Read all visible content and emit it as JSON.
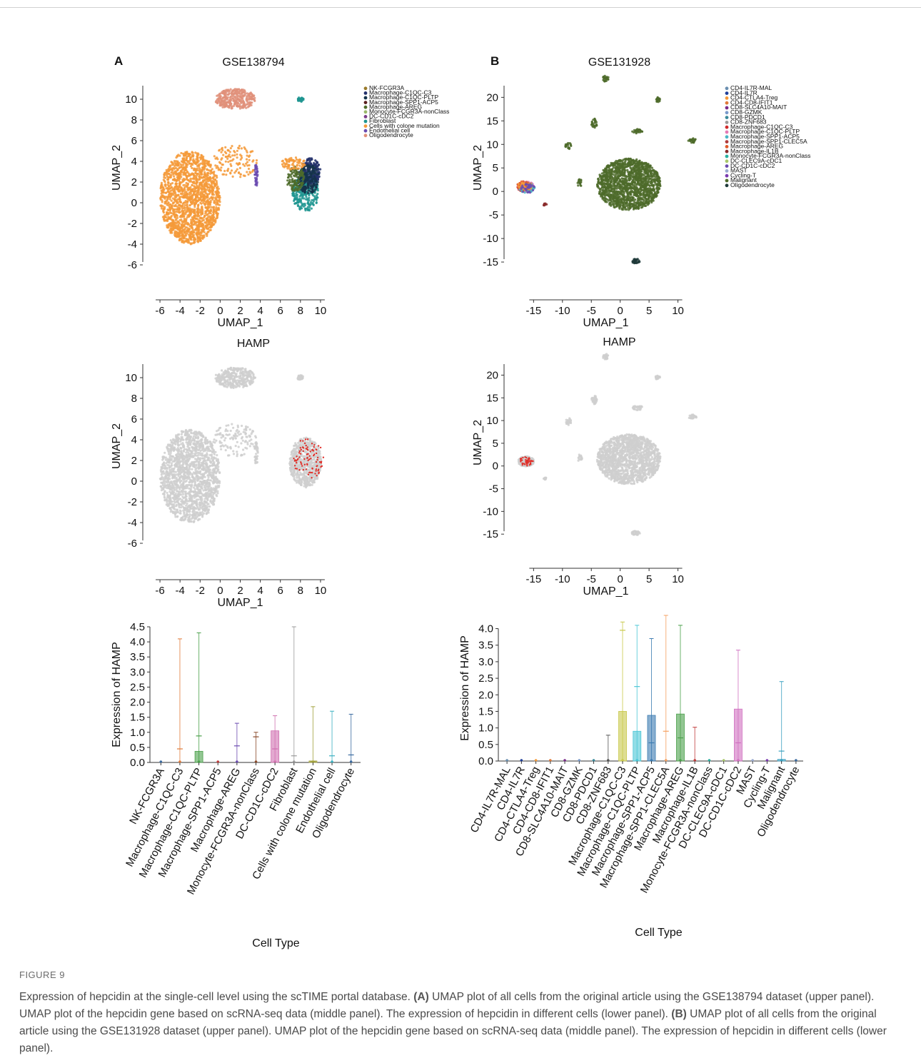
{
  "figure": {
    "panel_A_letter": "A",
    "panel_B_letter": "B",
    "hamp_title": "HAMP",
    "umap_x_label": "UMAP_1",
    "umap_y_label": "UMAP_2",
    "bar_y_label": "Expression of HAMP",
    "bar_x_label": "Cell Type"
  },
  "caption": {
    "label": "FIGURE 9",
    "parts": [
      {
        "t": "Expression of hepcidin at the single-cell level using the scTIME portal database. ",
        "b": false
      },
      {
        "t": "(A)",
        "b": true
      },
      {
        "t": " UMAP plot of all cells from the original article using the GSE138794 dataset (upper panel). UMAP plot of the hepcidin gene based on scRNA-seq data (middle panel). The expression of hepcidin in different cells (lower panel). ",
        "b": false
      },
      {
        "t": "(B)",
        "b": true
      },
      {
        "t": " UMAP plot of all cells from the original article using the GSE131928 dataset (upper panel). UMAP plot of the hepcidin gene based on scRNA-seq data (middle panel). The expression of hepcidin in different cells (lower panel).",
        "b": false
      }
    ]
  },
  "chart_data": [
    {
      "id": "A-umap",
      "type": "scatter",
      "title": "GSE138794",
      "xlabel": "UMAP_1",
      "ylabel": "UMAP_2",
      "xticks": [
        -6,
        -4,
        -2,
        0,
        2,
        4,
        6,
        8,
        10
      ],
      "yticks": [
        -6,
        -4,
        -2,
        0,
        2,
        4,
        6,
        8,
        10
      ],
      "xlim": [
        -7,
        11.5
      ],
      "ylim": [
        -8,
        12
      ],
      "legend": "right",
      "series": [
        {
          "name": "NK-FCGR3A",
          "color": "#9a7a2a"
        },
        {
          "name": "Macrophage-C1QC-C3",
          "color": "#23306b"
        },
        {
          "name": "Macrophage-C1QC-PLTP",
          "color": "#14324a"
        },
        {
          "name": "Macrophage-SPP1-ACP5",
          "color": "#5a1f1f"
        },
        {
          "name": "Macrophage-AREG",
          "color": "#4e6b2a"
        },
        {
          "name": "Monocyte-FCGR3A-nonClass",
          "color": "#9ab86a"
        },
        {
          "name": "DC-CD1C-cDC2",
          "color": "#7a3d8a"
        },
        {
          "name": "Fibroblast",
          "color": "#1f9590"
        },
        {
          "name": "Cells with colone mutation",
          "color": "#f59a3a"
        },
        {
          "name": "Endothelial cell",
          "color": "#6a4ab0"
        },
        {
          "name": "Oligodendrocyte",
          "color": "#e0907a"
        }
      ],
      "clusters": [
        {
          "series": "Cells with colone mutation",
          "cx": -3.0,
          "cy": 0.5,
          "rx": 3.0,
          "ry": 4.5,
          "n": 1700
        },
        {
          "series": "Cells with colone mutation",
          "cx": 1.5,
          "cy": 4.0,
          "rx": 2.2,
          "ry": 1.6,
          "n": 120
        },
        {
          "series": "Oligodendrocyte",
          "cx": 1.5,
          "cy": 10.0,
          "rx": 2.0,
          "ry": 1.0,
          "n": 320
        },
        {
          "series": "Fibroblast",
          "cx": 8.0,
          "cy": 10.0,
          "rx": 0.3,
          "ry": 0.25,
          "n": 35
        },
        {
          "series": "Fibroblast",
          "cx": 8.5,
          "cy": 1.0,
          "rx": 1.3,
          "ry": 1.9,
          "n": 260
        },
        {
          "series": "Macrophage-C1QC-C3",
          "cx": 9.0,
          "cy": 3.0,
          "rx": 1.0,
          "ry": 1.3,
          "n": 200
        },
        {
          "series": "Macrophage-C1QC-PLTP",
          "cx": 8.8,
          "cy": 2.3,
          "rx": 1.1,
          "ry": 1.4,
          "n": 170
        },
        {
          "series": "Macrophage-AREG",
          "cx": 7.5,
          "cy": 2.3,
          "rx": 0.9,
          "ry": 1.2,
          "n": 120
        },
        {
          "series": "Cells with colone mutation",
          "cx": 7.3,
          "cy": 3.8,
          "rx": 1.2,
          "ry": 0.6,
          "n": 70
        },
        {
          "series": "Endothelial cell",
          "cx": 3.6,
          "cy": 2.7,
          "rx": 0.18,
          "ry": 1.1,
          "n": 40
        }
      ]
    },
    {
      "id": "B-umap",
      "type": "scatter",
      "title": "GSE131928",
      "xlabel": "UMAP_1",
      "ylabel": "UMAP_2",
      "xticks": [
        -15,
        -10,
        -5,
        0,
        5,
        10
      ],
      "yticks": [
        -15,
        -10,
        -5,
        0,
        5,
        10,
        15,
        20
      ],
      "xlim": [
        -19,
        15
      ],
      "ylim": [
        -20,
        24
      ],
      "legend": "right",
      "series": [
        {
          "name": "CD4-IL7R-MAL",
          "color": "#6a8fb0"
        },
        {
          "name": "CD4-IL7R",
          "color": "#1f3f9a"
        },
        {
          "name": "CD4-CTLA4-Treg",
          "color": "#f59a3a"
        },
        {
          "name": "CD4-CD8-IFIT1",
          "color": "#e07a3a"
        },
        {
          "name": "CD8-SLC4A10-MAIT",
          "color": "#7a2a8a"
        },
        {
          "name": "CD8-GZMK",
          "color": "#7a9acb"
        },
        {
          "name": "CD8-PDCD1",
          "color": "#3a8a9a"
        },
        {
          "name": "CD8-ZNF683",
          "color": "#9a9a9a"
        },
        {
          "name": "Macrophage-C1QC-C3",
          "color": "#d02a2a"
        },
        {
          "name": "Macrophage-C1QC-PLTP",
          "color": "#e57ab5"
        },
        {
          "name": "Macrophage-SPP1-ACP5",
          "color": "#4ab6c6"
        },
        {
          "name": "Macrophage-SPP1-CLEC5A",
          "color": "#b03a3a"
        },
        {
          "name": "Macrophage-AREG",
          "color": "#e05a2a"
        },
        {
          "name": "Macrophage-IL1B",
          "color": "#8a2a2a"
        },
        {
          "name": "Monocyte-FCGR3A-nonClass",
          "color": "#2ab0a0"
        },
        {
          "name": "DC-CLEC9A-cDC1",
          "color": "#a8c86a"
        },
        {
          "name": "DC-CD1C-cDC2",
          "color": "#6a4ab0"
        },
        {
          "name": "MAST",
          "color": "#9aaad0"
        },
        {
          "name": "Cycling-T",
          "color": "#7a3ab0"
        },
        {
          "name": "Malignant",
          "color": "#4e6b2a"
        },
        {
          "name": "Oligodendrocyte",
          "color": "#1e3a3a"
        }
      ],
      "clusters": [
        {
          "series": "Malignant",
          "cx": 1.5,
          "cy": 1.5,
          "rx": 5.5,
          "ry": 5.5,
          "n": 1500
        },
        {
          "series": "Malignant",
          "cx": -2.5,
          "cy": 24.0,
          "rx": 0.5,
          "ry": 0.7,
          "n": 25
        },
        {
          "series": "Malignant",
          "cx": 6.5,
          "cy": 19.5,
          "rx": 0.4,
          "ry": 0.5,
          "n": 20
        },
        {
          "series": "Malignant",
          "cx": -4.5,
          "cy": 14.5,
          "rx": 0.5,
          "ry": 1.0,
          "n": 30
        },
        {
          "series": "Malignant",
          "cx": 3.0,
          "cy": 12.8,
          "rx": 0.9,
          "ry": 0.5,
          "n": 30
        },
        {
          "series": "Malignant",
          "cx": -9.0,
          "cy": 9.8,
          "rx": 0.5,
          "ry": 0.8,
          "n": 22
        },
        {
          "series": "Malignant",
          "cx": 12.5,
          "cy": 10.8,
          "rx": 0.7,
          "ry": 0.5,
          "n": 25
        },
        {
          "series": "Malignant",
          "cx": -7.0,
          "cy": 1.8,
          "rx": 0.4,
          "ry": 0.8,
          "n": 18
        },
        {
          "series": "Oligodendrocyte",
          "cx": 2.7,
          "cy": -14.8,
          "rx": 0.7,
          "ry": 0.5,
          "n": 35
        },
        {
          "series": "Macrophage-C1QC-C3",
          "cx": -16.5,
          "cy": 1.0,
          "rx": 1.4,
          "ry": 1.1,
          "n": 90
        },
        {
          "series": "Macrophage-C1QC-PLTP",
          "cx": -16.3,
          "cy": 1.0,
          "rx": 1.4,
          "ry": 1.1,
          "n": 80
        },
        {
          "series": "Macrophage-SPP1-ACP5",
          "cx": -16.2,
          "cy": 0.8,
          "rx": 1.4,
          "ry": 1.1,
          "n": 70
        },
        {
          "series": "Macrophage-AREG",
          "cx": -16.6,
          "cy": 1.2,
          "rx": 1.3,
          "ry": 1.0,
          "n": 40
        },
        {
          "series": "CD4-CTLA4-Treg",
          "cx": -16.4,
          "cy": 1.3,
          "rx": 1.3,
          "ry": 1.0,
          "n": 30
        },
        {
          "series": "DC-CD1C-cDC2",
          "cx": -16.0,
          "cy": 0.6,
          "rx": 1.3,
          "ry": 1.0,
          "n": 30
        },
        {
          "series": "Macrophage-IL1B",
          "cx": -13.0,
          "cy": -2.8,
          "rx": 0.3,
          "ry": 0.25,
          "n": 12
        }
      ]
    },
    {
      "id": "A-hamp",
      "type": "scatter",
      "title": "HAMP",
      "xlabel": "UMAP_1",
      "ylabel": "UMAP_2",
      "xticks": [
        -6,
        -4,
        -2,
        0,
        2,
        4,
        6,
        8,
        10
      ],
      "yticks": [
        -6,
        -4,
        -2,
        0,
        2,
        4,
        6,
        8,
        10
      ],
      "xlim": [
        -7,
        11.5
      ],
      "ylim": [
        -8,
        12
      ],
      "colors": {
        "low": "#cfcfcf",
        "high": "#e0302a"
      },
      "clusters": [
        {
          "cx": -3.0,
          "cy": 0.5,
          "rx": 3.0,
          "ry": 4.5,
          "n": 1700
        },
        {
          "cx": 1.5,
          "cy": 4.0,
          "rx": 2.2,
          "ry": 1.6,
          "n": 120
        },
        {
          "cx": 1.5,
          "cy": 10.0,
          "rx": 2.0,
          "ry": 1.0,
          "n": 320
        },
        {
          "cx": 8.0,
          "cy": 10.0,
          "rx": 0.3,
          "ry": 0.25,
          "n": 35
        },
        {
          "cx": 8.5,
          "cy": 1.8,
          "rx": 1.6,
          "ry": 2.4,
          "n": 650
        },
        {
          "cx": 3.6,
          "cy": 2.7,
          "rx": 0.18,
          "ry": 1.1,
          "n": 40
        }
      ],
      "expressing": {
        "cx": 8.8,
        "cy": 2.2,
        "rx": 1.5,
        "ry": 2.0,
        "n": 90
      }
    },
    {
      "id": "B-hamp",
      "type": "scatter",
      "title": "HAMP",
      "xlabel": "UMAP_1",
      "ylabel": "UMAP_2",
      "xticks": [
        -15,
        -10,
        -5,
        0,
        5,
        10
      ],
      "yticks": [
        -15,
        -10,
        -5,
        0,
        5,
        10,
        15,
        20
      ],
      "xlim": [
        -19,
        15
      ],
      "ylim": [
        -20,
        24
      ],
      "colors": {
        "low": "#cfcfcf",
        "high": "#e0302a"
      },
      "clusters": [
        {
          "cx": 1.5,
          "cy": 1.5,
          "rx": 5.5,
          "ry": 5.5,
          "n": 1500
        },
        {
          "cx": -2.5,
          "cy": 24.0,
          "rx": 0.5,
          "ry": 0.7,
          "n": 25
        },
        {
          "cx": 6.5,
          "cy": 19.5,
          "rx": 0.4,
          "ry": 0.5,
          "n": 20
        },
        {
          "cx": -4.5,
          "cy": 14.5,
          "rx": 0.5,
          "ry": 1.0,
          "n": 30
        },
        {
          "cx": 3.0,
          "cy": 12.8,
          "rx": 0.9,
          "ry": 0.5,
          "n": 30
        },
        {
          "cx": -9.0,
          "cy": 9.8,
          "rx": 0.5,
          "ry": 0.8,
          "n": 22
        },
        {
          "cx": 12.5,
          "cy": 10.8,
          "rx": 0.7,
          "ry": 0.5,
          "n": 25
        },
        {
          "cx": -7.0,
          "cy": 1.8,
          "rx": 0.4,
          "ry": 0.8,
          "n": 18
        },
        {
          "cx": 2.7,
          "cy": -14.8,
          "rx": 0.7,
          "ry": 0.5,
          "n": 35
        },
        {
          "cx": -16.3,
          "cy": 1.0,
          "rx": 1.4,
          "ry": 1.1,
          "n": 220
        },
        {
          "cx": -13.0,
          "cy": -2.8,
          "rx": 0.3,
          "ry": 0.25,
          "n": 12
        }
      ],
      "expressing": {
        "cx": -16.3,
        "cy": 1.0,
        "rx": 1.2,
        "ry": 1.0,
        "n": 40
      }
    },
    {
      "id": "A-bar",
      "type": "bar",
      "xlabel": "Cell Type",
      "ylabel": "Expression of HAMP",
      "ylim": [
        0,
        4.5
      ],
      "yticks": [
        0.0,
        0.5,
        1.0,
        1.5,
        2.0,
        2.5,
        3.0,
        3.5,
        4.0,
        4.5
      ],
      "categories": [
        "NK-FCGR3A",
        "Macrophage-C1QC-C3",
        "Macrophage-C1QC-PLTP",
        "Macrophage-SPP1-ACP5",
        "Macrophage-AREG",
        "Monocyte-FCGR3A-nonClass",
        "DC-CD1C-cDC2",
        "Fibroblast",
        "Cells with colone mutation",
        "Endothelial cell",
        "Oligodendrocyte"
      ],
      "values": [
        0.0,
        0.0,
        0.37,
        0.0,
        0.0,
        0.0,
        1.05,
        0.0,
        0.05,
        0.0,
        0.0
      ],
      "means": [
        0.0,
        0.45,
        0.88,
        0.0,
        0.55,
        0.85,
        0.45,
        0.22,
        0.03,
        0.22,
        0.25
      ],
      "whisker_max": [
        0.0,
        4.1,
        4.3,
        0.0,
        1.3,
        1.0,
        1.55,
        4.5,
        1.85,
        1.7,
        1.6
      ],
      "colors": [
        "#3a6aa0",
        "#e07a3a",
        "#4aa04a",
        "#c03a3a",
        "#6a4ab0",
        "#8a4a2a",
        "#d070b0",
        "#9a9a9a",
        "#a0a03a",
        "#3ab0c0",
        "#3a6aa0"
      ]
    },
    {
      "id": "B-bar",
      "type": "bar",
      "xlabel": "Cell Type",
      "ylabel": "Expression of HAMP",
      "ylim": [
        0,
        4.4
      ],
      "yticks": [
        0.0,
        0.5,
        1.0,
        1.5,
        2.0,
        2.5,
        3.0,
        3.5,
        4.0
      ],
      "categories": [
        "CD4-IL7R-MAL",
        "CD4-IL7R",
        "CD4-CTLA4-Treg",
        "CD4-CD8-IFIT1",
        "CD8-SLC4A10-MAIT",
        "CD8-GZMK",
        "CD8-PDCD1",
        "CD8-ZNF683",
        "Macrophage-C1QC-C3",
        "Macrophage-C1QC-PLTP",
        "Macrophage-SPP1-ACP5",
        "Macrophage-SPP1-CLEC5A",
        "Macrophage-AREG",
        "Macrophage-IL1B",
        "Monocyte-FCGR3A-nonClass",
        "DC-CLEC9A-cDC1",
        "DC-CD1C-cDC2",
        "MAST",
        "Cycling-T",
        "Malignant",
        "Oligodendrocyte"
      ],
      "values": [
        0,
        0,
        0,
        0,
        0,
        0,
        0,
        0,
        1.5,
        0.9,
        1.38,
        0,
        1.42,
        0,
        0,
        0,
        1.57,
        0,
        0,
        0.05,
        0
      ],
      "means": [
        0,
        0,
        0,
        0,
        0,
        0,
        0,
        0,
        3.95,
        2.25,
        0.55,
        0.9,
        0.7,
        0,
        0,
        0,
        0.55,
        0,
        0,
        0.3,
        0
      ],
      "whisker_max": [
        0,
        0,
        0,
        0,
        0,
        0,
        0,
        0.78,
        4.2,
        4.1,
        3.7,
        4.4,
        4.1,
        1.02,
        0,
        0,
        3.35,
        0,
        0,
        2.4,
        0
      ],
      "colors": [
        "#6a8fb0",
        "#1f3f9a",
        "#f59a3a",
        "#e07a3a",
        "#7a2a8a",
        "#7a9acb",
        "#3a8a9a",
        "#555555",
        "#c8c84a",
        "#4ac6d6",
        "#3a7ab0",
        "#f5a060",
        "#4aa04a",
        "#c03a3a",
        "#2ab0a0",
        "#a8c86a",
        "#d070c0",
        "#9aaad0",
        "#7a3ab0",
        "#3aa0c0",
        "#3a6aa0"
      ]
    }
  ]
}
